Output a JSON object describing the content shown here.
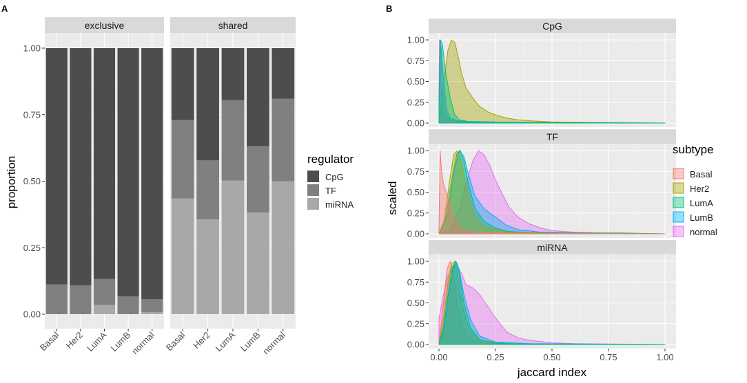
{
  "panel_a": {
    "tag": "A",
    "ylabel": "proportion",
    "legend_title": "regulator",
    "colors": {
      "CpG": "#4d4d4d",
      "TF": "#808080",
      "miRNA": "#a8a8a8"
    },
    "chart_data": {
      "type": "bar",
      "stacked": true,
      "ylim": [
        0,
        1
      ],
      "yticks": [
        "0.00",
        "0.25",
        "0.50",
        "0.75",
        "1.00"
      ],
      "categories": [
        "Basal",
        "Her2",
        "LumA",
        "LumB",
        "normal"
      ],
      "facets": [
        {
          "label": "exclusive",
          "series": [
            {
              "name": "miRNA",
              "values": [
                0.0,
                0.0,
                0.035,
                0.0,
                0.008
              ]
            },
            {
              "name": "TF",
              "values": [
                0.112,
                0.108,
                0.098,
                0.067,
                0.048
              ]
            },
            {
              "name": "CpG",
              "values": [
                0.888,
                0.892,
                0.867,
                0.933,
                0.944
              ]
            }
          ]
        },
        {
          "label": "shared",
          "series": [
            {
              "name": "miRNA",
              "values": [
                0.435,
                0.357,
                0.502,
                0.382,
                0.5
              ]
            },
            {
              "name": "TF",
              "values": [
                0.295,
                0.221,
                0.303,
                0.25,
                0.31
              ]
            },
            {
              "name": "CpG",
              "values": [
                0.27,
                0.422,
                0.195,
                0.368,
                0.19
              ]
            }
          ]
        }
      ]
    }
  },
  "panel_b": {
    "tag": "B",
    "ylabel": "scaled",
    "xlabel": "jaccard index",
    "legend_title": "subtype",
    "colors": {
      "Basal": {
        "line": "#f8766d",
        "fill": "rgba(248,118,109,0.4)"
      },
      "Her2": {
        "line": "#a3a500",
        "fill": "rgba(163,165,0,0.4)"
      },
      "LumA": {
        "line": "#00bf7d",
        "fill": "rgba(0,191,125,0.4)"
      },
      "LumB": {
        "line": "#00b0f6",
        "fill": "rgba(0,176,246,0.4)"
      },
      "normal": {
        "line": "#e76bf3",
        "fill": "rgba(231,107,243,0.4)"
      }
    },
    "chart_data": {
      "type": "area",
      "xlim": [
        0,
        1
      ],
      "ylim": [
        0,
        1
      ],
      "xticks": [
        "0.00",
        "0.25",
        "0.50",
        "0.75",
        "1.00"
      ],
      "yticks": [
        "0.00",
        "0.25",
        "0.50",
        "0.75",
        "1.00"
      ],
      "legend": [
        "Basal",
        "Her2",
        "LumA",
        "LumB",
        "normal"
      ],
      "facets": [
        {
          "label": "CpG",
          "series": [
            {
              "name": "normal",
              "x": [
                0,
                0.002,
                0.006,
                0.012,
                0.02,
                0.035,
                0.06,
                0.12,
                0.3,
                0.6,
                1.0
              ],
              "y": [
                0.35,
                1.0,
                0.7,
                0.3,
                0.1,
                0.05,
                0.03,
                0.02,
                0.01,
                0.01,
                0.0
              ]
            },
            {
              "name": "Basal",
              "x": [
                0,
                0.004,
                0.01,
                0.018,
                0.03,
                0.05,
                0.08,
                0.15,
                0.4,
                1.0
              ],
              "y": [
                0.1,
                1.0,
                0.75,
                0.35,
                0.1,
                0.04,
                0.02,
                0.01,
                0.0,
                0.0
              ]
            },
            {
              "name": "Her2",
              "x": [
                0,
                0.01,
                0.025,
                0.04,
                0.055,
                0.07,
                0.085,
                0.1,
                0.12,
                0.15,
                0.18,
                0.22,
                0.26,
                0.3,
                0.35,
                0.42,
                0.5,
                0.6,
                0.8,
                1.0
              ],
              "y": [
                0.0,
                0.2,
                0.58,
                0.88,
                1.0,
                0.97,
                0.8,
                0.6,
                0.42,
                0.3,
                0.2,
                0.13,
                0.09,
                0.06,
                0.04,
                0.025,
                0.015,
                0.01,
                0.005,
                0.0
              ]
            },
            {
              "name": "LumB",
              "x": [
                0,
                0.005,
                0.012,
                0.022,
                0.035,
                0.05,
                0.08,
                0.12,
                0.4,
                1.0
              ],
              "y": [
                0.2,
                1.0,
                0.85,
                0.45,
                0.15,
                0.06,
                0.03,
                0.01,
                0.005,
                0.0
              ]
            },
            {
              "name": "LumA",
              "x": [
                0,
                0.006,
                0.015,
                0.03,
                0.05,
                0.07,
                0.09,
                0.13,
                0.4,
                1.0
              ],
              "y": [
                0.15,
                1.0,
                0.95,
                0.6,
                0.3,
                0.1,
                0.04,
                0.02,
                0.005,
                0.0
              ]
            }
          ]
        },
        {
          "label": "TF",
          "series": [
            {
              "name": "normal",
              "x": [
                0,
                0.05,
                0.09,
                0.12,
                0.15,
                0.175,
                0.2,
                0.225,
                0.25,
                0.28,
                0.31,
                0.35,
                0.4,
                0.45,
                0.5,
                0.6,
                0.7,
                0.8,
                1.0
              ],
              "y": [
                0.0,
                0.05,
                0.3,
                0.6,
                0.88,
                1.0,
                0.95,
                0.82,
                0.65,
                0.48,
                0.32,
                0.2,
                0.12,
                0.07,
                0.04,
                0.02,
                0.01,
                0.005,
                0.0
              ]
            },
            {
              "name": "LumB",
              "x": [
                0,
                0.04,
                0.07,
                0.09,
                0.11,
                0.13,
                0.16,
                0.2,
                0.25,
                0.3,
                0.35,
                0.45,
                0.6,
                0.8,
                1.0
              ],
              "y": [
                0.0,
                0.25,
                0.8,
                1.0,
                0.93,
                0.72,
                0.45,
                0.3,
                0.2,
                0.1,
                0.05,
                0.02,
                0.01,
                0.005,
                0.0
              ]
            },
            {
              "name": "LumA",
              "x": [
                0,
                0.03,
                0.06,
                0.08,
                0.095,
                0.11,
                0.13,
                0.16,
                0.2,
                0.25,
                0.3,
                0.4,
                0.6,
                0.8,
                1.0
              ],
              "y": [
                0.0,
                0.2,
                0.7,
                0.97,
                1.0,
                0.88,
                0.6,
                0.3,
                0.15,
                0.07,
                0.03,
                0.015,
                0.01,
                0.01,
                0.0
              ]
            },
            {
              "name": "Her2",
              "x": [
                0,
                0.02,
                0.045,
                0.065,
                0.08,
                0.1,
                0.12,
                0.15,
                0.2,
                0.3,
                0.5,
                1.0
              ],
              "y": [
                0.0,
                0.1,
                0.6,
                0.95,
                1.0,
                0.85,
                0.55,
                0.25,
                0.08,
                0.02,
                0.005,
                0.0
              ]
            },
            {
              "name": "Basal",
              "x": [
                0,
                0.005,
                0.012,
                0.02,
                0.03,
                0.045,
                0.06,
                0.08,
                0.1,
                0.15,
                0.3,
                1.0
              ],
              "y": [
                0.05,
                1.0,
                0.75,
                0.6,
                0.52,
                0.4,
                0.25,
                0.12,
                0.05,
                0.02,
                0.005,
                0.0
              ]
            }
          ]
        },
        {
          "label": "miRNA",
          "series": [
            {
              "name": "normal",
              "x": [
                0,
                0.02,
                0.04,
                0.06,
                0.08,
                0.1,
                0.12,
                0.15,
                0.18,
                0.21,
                0.24,
                0.27,
                0.3,
                0.35,
                0.4,
                0.5,
                0.6,
                0.8,
                1.0
              ],
              "y": [
                0.32,
                0.6,
                0.82,
                0.92,
                0.95,
                0.85,
                0.72,
                0.68,
                0.6,
                0.48,
                0.36,
                0.25,
                0.15,
                0.08,
                0.05,
                0.02,
                0.01,
                0.005,
                0.0
              ]
            },
            {
              "name": "Basal",
              "x": [
                0,
                0.02,
                0.035,
                0.05,
                0.065,
                0.08,
                0.1,
                0.13,
                0.18,
                0.3,
                1.0
              ],
              "y": [
                0.0,
                0.5,
                0.9,
                1.0,
                0.85,
                0.5,
                0.25,
                0.08,
                0.02,
                0.005,
                0.0
              ]
            },
            {
              "name": "Her2",
              "x": [
                0,
                0.02,
                0.04,
                0.055,
                0.07,
                0.085,
                0.1,
                0.13,
                0.18,
                0.3,
                1.0
              ],
              "y": [
                0.0,
                0.3,
                0.75,
                0.97,
                1.0,
                0.8,
                0.5,
                0.2,
                0.05,
                0.01,
                0.0
              ]
            },
            {
              "name": "LumB",
              "x": [
                0,
                0.02,
                0.04,
                0.06,
                0.075,
                0.09,
                0.11,
                0.14,
                0.18,
                0.25,
                0.4,
                1.0
              ],
              "y": [
                0.0,
                0.15,
                0.55,
                0.9,
                1.0,
                0.9,
                0.6,
                0.3,
                0.1,
                0.03,
                0.01,
                0.0
              ]
            },
            {
              "name": "LumA",
              "x": [
                0,
                0.02,
                0.04,
                0.06,
                0.075,
                0.09,
                0.11,
                0.14,
                0.18,
                0.25,
                0.4,
                1.0
              ],
              "y": [
                0.0,
                0.2,
                0.6,
                0.93,
                1.0,
                0.85,
                0.5,
                0.2,
                0.06,
                0.015,
                0.005,
                0.0
              ]
            }
          ]
        }
      ]
    }
  }
}
